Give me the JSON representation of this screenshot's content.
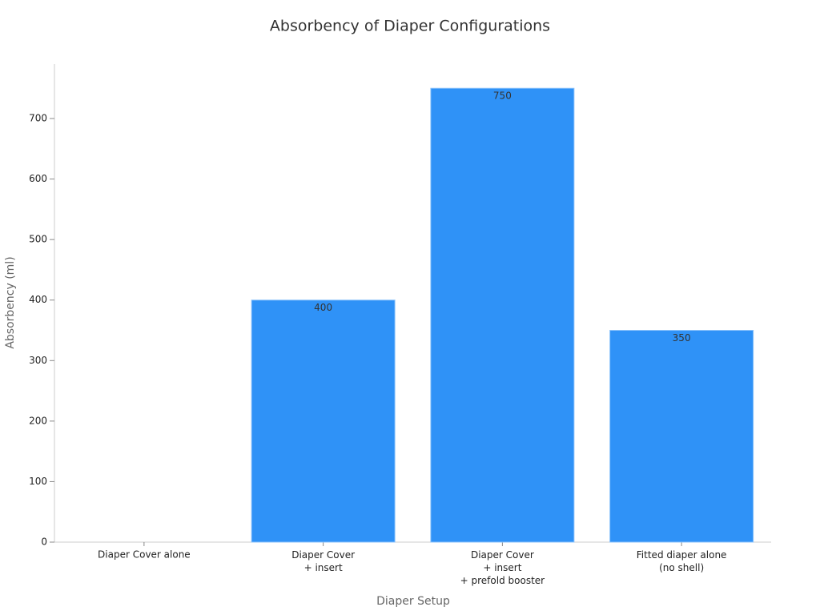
{
  "chart_data": {
    "type": "bar",
    "title": "Absorbency of Diaper Configurations",
    "x_label": "Diaper Setup",
    "y_label": "Absorbency (ml)",
    "categories": [
      "Diaper Cover alone",
      "Diaper Cover\n+ insert",
      "Diaper Cover\n+ insert\n+ prefold booster",
      "Fitted diaper alone\n(no shell)"
    ],
    "values": [
      0,
      400,
      750,
      350
    ],
    "color": "#2f92f7",
    "data_labels": true,
    "ylim": [
      0,
      790
    ],
    "yticks": [
      0,
      100,
      200,
      300,
      400,
      500,
      600,
      700
    ],
    "grid": false
  }
}
